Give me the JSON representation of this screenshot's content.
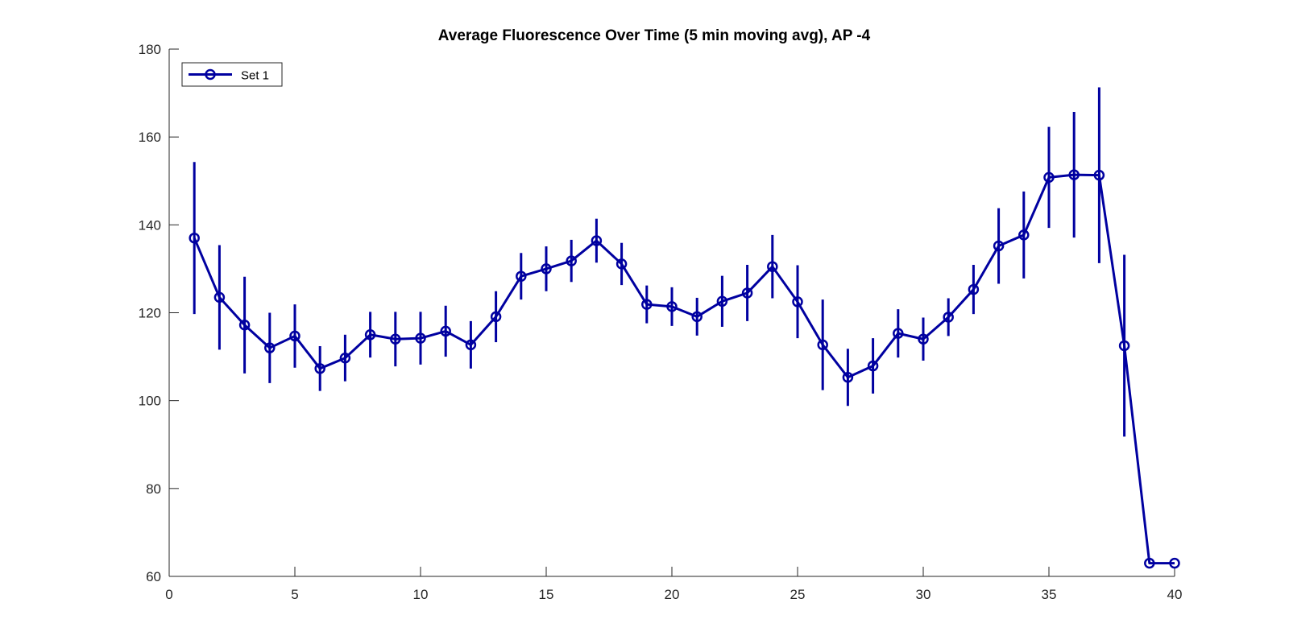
{
  "chart_data": {
    "type": "line",
    "title": "Average Fluorescence Over Time (5 min moving avg), AP -4",
    "xlabel": "",
    "ylabel": "",
    "xlim": [
      0,
      40
    ],
    "ylim": [
      60,
      180
    ],
    "xticks": [
      0,
      5,
      10,
      15,
      20,
      25,
      30,
      35,
      40
    ],
    "yticks": [
      60,
      80,
      100,
      120,
      140,
      160,
      180
    ],
    "grid": false,
    "legend": {
      "position": "top-left",
      "entries": [
        "Set 1"
      ]
    },
    "colors": {
      "series": "#0000a0",
      "axis": "#262626"
    },
    "series": [
      {
        "name": "Set 1",
        "marker": "circle",
        "x": [
          1,
          2,
          3,
          4,
          5,
          6,
          7,
          8,
          9,
          10,
          11,
          12,
          13,
          14,
          15,
          16,
          17,
          18,
          19,
          20,
          21,
          22,
          23,
          24,
          25,
          26,
          27,
          28,
          29,
          30,
          31,
          32,
          33,
          34,
          35,
          36,
          37,
          38,
          39,
          40
        ],
        "y": [
          137,
          123.5,
          117.2,
          112,
          114.7,
          107.3,
          109.7,
          115,
          114,
          114.2,
          115.8,
          112.7,
          119.1,
          128.3,
          130,
          131.8,
          136.4,
          131.1,
          121.9,
          121.4,
          119.1,
          122.6,
          124.5,
          130.5,
          122.5,
          112.7,
          105.3,
          107.9,
          115.3,
          114,
          119,
          125.3,
          135.2,
          137.7,
          150.8,
          151.4,
          151.3,
          112.5,
          63,
          63
        ],
        "error": [
          17.3,
          11.9,
          11,
          8,
          7.2,
          5.1,
          5.3,
          5.2,
          6.2,
          6,
          5.8,
          5.4,
          5.8,
          5.3,
          5.1,
          4.8,
          5,
          4.8,
          4.3,
          4.4,
          4.3,
          5.8,
          6.4,
          7.2,
          8.3,
          10.3,
          6.5,
          6.3,
          5.5,
          4.9,
          4.3,
          5.6,
          8.6,
          9.9,
          11.5,
          14.3,
          20,
          20.7,
          0,
          0
        ]
      }
    ]
  }
}
